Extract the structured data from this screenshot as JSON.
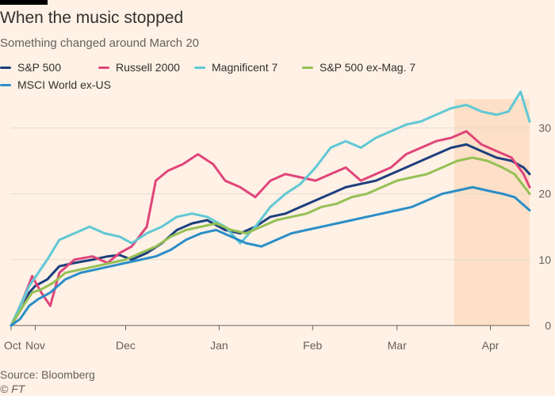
{
  "title": "When the music stopped",
  "subtitle": "Something changed around March 20",
  "source": "Source: Bloomberg",
  "credit": "© FT",
  "colors": {
    "background": "#fff1e5",
    "highlight": "#fde0c7",
    "gridline": "#e6d9ce",
    "axis": "#66605c"
  },
  "chart_data": {
    "type": "line",
    "ylim": [
      0,
      35
    ],
    "y_ticks": [
      0,
      10,
      20,
      30
    ],
    "x_ticks": [
      {
        "label": "Oct",
        "date": "2024-10-24"
      },
      {
        "label": "Nov",
        "date": "2024-11-01"
      },
      {
        "label": "Dec",
        "date": "2024-12-01"
      },
      {
        "label": "Jan",
        "date": "2025-01-01"
      },
      {
        "label": "Feb",
        "date": "2025-02-01"
      },
      {
        "label": "Mar",
        "date": "2025-03-01"
      },
      {
        "label": "Apr",
        "date": "2025-04-01"
      }
    ],
    "highlight": {
      "start": "2025-03-20",
      "end": "2025-04-14"
    },
    "grid": true,
    "legend_position": "top-left",
    "series": [
      {
        "name": "S&P 500",
        "color": "#1d3f7e",
        "width": 3,
        "points": [
          [
            "2024-10-24",
            0
          ],
          [
            "2024-10-26",
            1.5
          ],
          [
            "2024-10-28",
            3
          ],
          [
            "2024-10-30",
            5
          ],
          [
            "2024-11-01",
            6
          ],
          [
            "2024-11-05",
            7
          ],
          [
            "2024-11-09",
            9
          ],
          [
            "2024-11-14",
            9.5
          ],
          [
            "2024-11-20",
            10
          ],
          [
            "2024-11-25",
            10.5
          ],
          [
            "2024-11-29",
            10.7
          ],
          [
            "2024-12-03",
            10
          ],
          [
            "2024-12-08",
            11
          ],
          [
            "2024-12-13",
            12.5
          ],
          [
            "2024-12-18",
            14.5
          ],
          [
            "2024-12-23",
            15.5
          ],
          [
            "2024-12-28",
            16
          ],
          [
            "2025-01-03",
            14.5
          ],
          [
            "2025-01-08",
            14
          ],
          [
            "2025-01-13",
            15
          ],
          [
            "2025-01-18",
            16.5
          ],
          [
            "2025-01-23",
            17
          ],
          [
            "2025-01-28",
            18
          ],
          [
            "2025-02-02",
            19
          ],
          [
            "2025-02-07",
            20
          ],
          [
            "2025-02-12",
            21
          ],
          [
            "2025-02-17",
            21.5
          ],
          [
            "2025-02-22",
            22
          ],
          [
            "2025-02-27",
            23
          ],
          [
            "2025-03-04",
            24
          ],
          [
            "2025-03-09",
            25
          ],
          [
            "2025-03-14",
            26
          ],
          [
            "2025-03-19",
            27
          ],
          [
            "2025-03-24",
            27.5
          ],
          [
            "2025-03-29",
            26.5
          ],
          [
            "2025-04-03",
            25.5
          ],
          [
            "2025-04-08",
            25
          ],
          [
            "2025-04-12",
            24
          ],
          [
            "2025-04-14",
            23
          ]
        ]
      },
      {
        "name": "Russell 2000",
        "color": "#e0457b",
        "width": 3,
        "points": [
          [
            "2024-10-24",
            0
          ],
          [
            "2024-10-26",
            2
          ],
          [
            "2024-10-28",
            4
          ],
          [
            "2024-10-31",
            7.5
          ],
          [
            "2024-11-03",
            5
          ],
          [
            "2024-11-06",
            3
          ],
          [
            "2024-11-09",
            8
          ],
          [
            "2024-11-14",
            10
          ],
          [
            "2024-11-20",
            10.5
          ],
          [
            "2024-11-25",
            9.5
          ],
          [
            "2024-11-29",
            11
          ],
          [
            "2024-12-03",
            12
          ],
          [
            "2024-12-08",
            15
          ],
          [
            "2024-12-11",
            22
          ],
          [
            "2024-12-15",
            23.5
          ],
          [
            "2024-12-20",
            24.5
          ],
          [
            "2024-12-25",
            26
          ],
          [
            "2024-12-30",
            24.5
          ],
          [
            "2025-01-03",
            22
          ],
          [
            "2025-01-08",
            21
          ],
          [
            "2025-01-13",
            19.5
          ],
          [
            "2025-01-18",
            22
          ],
          [
            "2025-01-23",
            23
          ],
          [
            "2025-01-28",
            22.5
          ],
          [
            "2025-02-02",
            22
          ],
          [
            "2025-02-07",
            23
          ],
          [
            "2025-02-12",
            24
          ],
          [
            "2025-02-17",
            22
          ],
          [
            "2025-02-22",
            23
          ],
          [
            "2025-02-27",
            24
          ],
          [
            "2025-03-04",
            26
          ],
          [
            "2025-03-09",
            27
          ],
          [
            "2025-03-14",
            28
          ],
          [
            "2025-03-19",
            28.5
          ],
          [
            "2025-03-24",
            29.5
          ],
          [
            "2025-03-29",
            27.5
          ],
          [
            "2025-04-03",
            26.5
          ],
          [
            "2025-04-08",
            25.5
          ],
          [
            "2025-04-12",
            23
          ],
          [
            "2025-04-14",
            21
          ]
        ]
      },
      {
        "name": "Magnificent 7",
        "color": "#60c8d4",
        "width": 3,
        "points": [
          [
            "2024-10-24",
            0
          ],
          [
            "2024-10-26",
            2
          ],
          [
            "2024-10-28",
            4
          ],
          [
            "2024-10-30",
            6
          ],
          [
            "2024-11-02",
            8
          ],
          [
            "2024-11-05",
            10
          ],
          [
            "2024-11-09",
            13
          ],
          [
            "2024-11-14",
            14
          ],
          [
            "2024-11-19",
            15
          ],
          [
            "2024-11-24",
            14
          ],
          [
            "2024-11-29",
            13.5
          ],
          [
            "2024-12-03",
            12.5
          ],
          [
            "2024-12-08",
            14
          ],
          [
            "2024-12-13",
            15
          ],
          [
            "2024-12-18",
            16.5
          ],
          [
            "2024-12-23",
            17
          ],
          [
            "2024-12-28",
            16.5
          ],
          [
            "2025-01-03",
            15
          ],
          [
            "2025-01-08",
            12.5
          ],
          [
            "2025-01-13",
            15
          ],
          [
            "2025-01-18",
            18
          ],
          [
            "2025-01-23",
            20
          ],
          [
            "2025-01-28",
            21.5
          ],
          [
            "2025-02-02",
            24
          ],
          [
            "2025-02-07",
            27
          ],
          [
            "2025-02-12",
            28
          ],
          [
            "2025-02-17",
            27
          ],
          [
            "2025-02-22",
            28.5
          ],
          [
            "2025-02-27",
            29.5
          ],
          [
            "2025-03-04",
            30.5
          ],
          [
            "2025-03-09",
            31
          ],
          [
            "2025-03-14",
            32
          ],
          [
            "2025-03-19",
            33
          ],
          [
            "2025-03-24",
            33.5
          ],
          [
            "2025-03-29",
            32.5
          ],
          [
            "2025-04-03",
            32
          ],
          [
            "2025-04-07",
            32.5
          ],
          [
            "2025-04-11",
            35.5
          ],
          [
            "2025-04-14",
            31
          ]
        ]
      },
      {
        "name": "S&P 500 ex-Mag. 7",
        "color": "#96c055",
        "width": 3,
        "points": [
          [
            "2024-10-24",
            0
          ],
          [
            "2024-10-26",
            1.5
          ],
          [
            "2024-10-28",
            3
          ],
          [
            "2024-10-31",
            5
          ],
          [
            "2024-11-03",
            5.5
          ],
          [
            "2024-11-07",
            6.5
          ],
          [
            "2024-11-11",
            8
          ],
          [
            "2024-11-16",
            8.5
          ],
          [
            "2024-11-21",
            9
          ],
          [
            "2024-11-26",
            9.5
          ],
          [
            "2024-12-01",
            10
          ],
          [
            "2024-12-06",
            11
          ],
          [
            "2024-12-11",
            12
          ],
          [
            "2024-12-16",
            13.5
          ],
          [
            "2024-12-21",
            14.5
          ],
          [
            "2024-12-26",
            15
          ],
          [
            "2024-12-31",
            15.5
          ],
          [
            "2025-01-05",
            14.5
          ],
          [
            "2025-01-10",
            14
          ],
          [
            "2025-01-15",
            15
          ],
          [
            "2025-01-20",
            16
          ],
          [
            "2025-01-25",
            16.5
          ],
          [
            "2025-01-30",
            17
          ],
          [
            "2025-02-04",
            18
          ],
          [
            "2025-02-09",
            18.5
          ],
          [
            "2025-02-14",
            19.5
          ],
          [
            "2025-02-19",
            20
          ],
          [
            "2025-02-24",
            21
          ],
          [
            "2025-03-01",
            22
          ],
          [
            "2025-03-06",
            22.5
          ],
          [
            "2025-03-11",
            23
          ],
          [
            "2025-03-16",
            24
          ],
          [
            "2025-03-21",
            25
          ],
          [
            "2025-03-26",
            25.5
          ],
          [
            "2025-03-31",
            25
          ],
          [
            "2025-04-05",
            24
          ],
          [
            "2025-04-09",
            23
          ],
          [
            "2025-04-14",
            20
          ]
        ]
      },
      {
        "name": "MSCI World ex-US",
        "color": "#2b8ec8",
        "width": 3,
        "points": [
          [
            "2024-10-24",
            0
          ],
          [
            "2024-10-27",
            1
          ],
          [
            "2024-10-30",
            3
          ],
          [
            "2024-11-02",
            4
          ],
          [
            "2024-11-06",
            5
          ],
          [
            "2024-11-11",
            7
          ],
          [
            "2024-11-16",
            8
          ],
          [
            "2024-11-21",
            8.5
          ],
          [
            "2024-11-26",
            9
          ],
          [
            "2024-12-01",
            9.5
          ],
          [
            "2024-12-06",
            10
          ],
          [
            "2024-12-11",
            10.5
          ],
          [
            "2024-12-16",
            11.5
          ],
          [
            "2024-12-21",
            13
          ],
          [
            "2024-12-26",
            14
          ],
          [
            "2024-12-31",
            14.5
          ],
          [
            "2025-01-05",
            13.5
          ],
          [
            "2025-01-10",
            12.5
          ],
          [
            "2025-01-15",
            12
          ],
          [
            "2025-01-20",
            13
          ],
          [
            "2025-01-25",
            14
          ],
          [
            "2025-01-30",
            14.5
          ],
          [
            "2025-02-04",
            15
          ],
          [
            "2025-02-09",
            15.5
          ],
          [
            "2025-02-14",
            16
          ],
          [
            "2025-02-19",
            16.5
          ],
          [
            "2025-02-24",
            17
          ],
          [
            "2025-03-01",
            17.5
          ],
          [
            "2025-03-06",
            18
          ],
          [
            "2025-03-11",
            19
          ],
          [
            "2025-03-16",
            20
          ],
          [
            "2025-03-21",
            20.5
          ],
          [
            "2025-03-26",
            21
          ],
          [
            "2025-03-31",
            20.5
          ],
          [
            "2025-04-05",
            20
          ],
          [
            "2025-04-09",
            19.5
          ],
          [
            "2025-04-14",
            17.5
          ]
        ]
      }
    ]
  }
}
